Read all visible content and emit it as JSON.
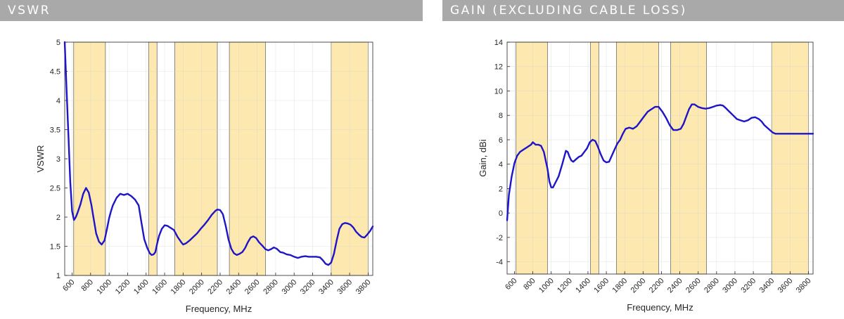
{
  "headers": {
    "left": "VSWR",
    "right": "GAIN (EXCLUDING CABLE LOSS)"
  },
  "colors": {
    "band": "#fde9b0",
    "line": "#1e14c8",
    "grid": "#e6e6e6",
    "header": "#a9a9a9"
  },
  "chart_data": [
    {
      "type": "line",
      "xlabel": "Frequency, MHz",
      "ylabel": "VSWR",
      "xlim": [
        520,
        3850
      ],
      "ylim": [
        1,
        5
      ],
      "grid": true,
      "xticks": [
        600,
        800,
        1000,
        1200,
        1400,
        1600,
        1800,
        2000,
        2200,
        2400,
        2600,
        2800,
        3000,
        3200,
        3400,
        3600,
        3800
      ],
      "yticks": [
        1,
        1.5,
        2,
        2.5,
        3,
        3.5,
        4,
        4.5,
        5
      ],
      "ytick_labels": [
        "1",
        "1.5",
        "2",
        "2.5",
        "3",
        "3.5",
        "4",
        "4.5",
        "5"
      ],
      "bands": [
        [
          617,
          960
        ],
        [
          1427,
          1518
        ],
        [
          1710,
          2170
        ],
        [
          2300,
          2690
        ],
        [
          3400,
          3800
        ]
      ],
      "series": [
        {
          "x": [
            520,
            540,
            560,
            580,
            600,
            620,
            640,
            660,
            690,
            720,
            750,
            780,
            810,
            830,
            860,
            890,
            920,
            950,
            980,
            1000,
            1020,
            1040,
            1080,
            1120,
            1160,
            1200,
            1240,
            1280,
            1320,
            1350,
            1380,
            1410,
            1440,
            1460,
            1480,
            1500,
            1520,
            1540,
            1570,
            1600,
            1630,
            1660,
            1700,
            1740,
            1780,
            1800,
            1830,
            1870,
            1910,
            1950,
            1990,
            2030,
            2070,
            2110,
            2150,
            2170,
            2200,
            2230,
            2260,
            2290,
            2320,
            2350,
            2380,
            2410,
            2440,
            2470,
            2500,
            2530,
            2560,
            2590,
            2620,
            2650,
            2690,
            2720,
            2750,
            2780,
            2810,
            2850,
            2880,
            2920,
            2960,
            3000,
            3040,
            3080,
            3120,
            3160,
            3200,
            3240,
            3280,
            3310,
            3340,
            3370,
            3400,
            3430,
            3460,
            3490,
            3520,
            3550,
            3580,
            3610,
            3640,
            3670,
            3700,
            3730,
            3760,
            3790,
            3820,
            3850
          ],
          "y": [
            5.0,
            4.2,
            3.4,
            2.6,
            2.1,
            1.95,
            2.0,
            2.08,
            2.22,
            2.4,
            2.5,
            2.42,
            2.2,
            2.0,
            1.72,
            1.58,
            1.53,
            1.6,
            1.82,
            1.98,
            2.1,
            2.2,
            2.33,
            2.4,
            2.38,
            2.4,
            2.36,
            2.3,
            2.2,
            1.9,
            1.62,
            1.48,
            1.38,
            1.35,
            1.36,
            1.4,
            1.55,
            1.68,
            1.8,
            1.86,
            1.85,
            1.82,
            1.78,
            1.66,
            1.57,
            1.53,
            1.55,
            1.6,
            1.66,
            1.72,
            1.8,
            1.87,
            1.95,
            2.04,
            2.11,
            2.13,
            2.12,
            2.05,
            1.85,
            1.62,
            1.46,
            1.38,
            1.35,
            1.37,
            1.4,
            1.47,
            1.57,
            1.65,
            1.67,
            1.64,
            1.57,
            1.52,
            1.45,
            1.43,
            1.45,
            1.48,
            1.46,
            1.4,
            1.39,
            1.36,
            1.35,
            1.32,
            1.3,
            1.32,
            1.33,
            1.32,
            1.32,
            1.32,
            1.31,
            1.26,
            1.2,
            1.18,
            1.22,
            1.37,
            1.6,
            1.8,
            1.88,
            1.9,
            1.89,
            1.87,
            1.82,
            1.75,
            1.7,
            1.66,
            1.65,
            1.7,
            1.76,
            1.84
          ]
        }
      ]
    },
    {
      "type": "line",
      "xlabel": "Frequency, MHz",
      "ylabel": "Gain, dBi",
      "xlim": [
        520,
        3850
      ],
      "ylim": [
        -5,
        14
      ],
      "grid": true,
      "xticks": [
        600,
        800,
        1000,
        1200,
        1400,
        1600,
        1800,
        2000,
        2200,
        2400,
        2600,
        2800,
        3000,
        3200,
        3400,
        3600,
        3800
      ],
      "yticks": [
        -4,
        -2,
        0,
        2,
        4,
        6,
        8,
        10,
        12,
        14
      ],
      "ytick_labels": [
        "-4",
        "-2",
        "0",
        "2",
        "4",
        "6",
        "8",
        "10",
        "12",
        "14"
      ],
      "bands": [
        [
          617,
          960
        ],
        [
          1427,
          1518
        ],
        [
          1710,
          2170
        ],
        [
          2300,
          2690
        ],
        [
          3400,
          3800
        ]
      ],
      "series": [
        {
          "x": [
            520,
            540,
            570,
            600,
            630,
            660,
            700,
            740,
            780,
            800,
            830,
            860,
            890,
            920,
            940,
            960,
            980,
            1000,
            1020,
            1040,
            1080,
            1120,
            1160,
            1180,
            1200,
            1220,
            1240,
            1270,
            1300,
            1330,
            1360,
            1390,
            1420,
            1450,
            1480,
            1510,
            1540,
            1570,
            1600,
            1630,
            1660,
            1690,
            1720,
            1750,
            1780,
            1810,
            1850,
            1890,
            1930,
            1970,
            2010,
            2050,
            2090,
            2130,
            2170,
            2210,
            2250,
            2290,
            2330,
            2370,
            2410,
            2440,
            2470,
            2500,
            2530,
            2560,
            2600,
            2640,
            2680,
            2720,
            2760,
            2800,
            2840,
            2870,
            2900,
            2940,
            2980,
            3020,
            3060,
            3100,
            3140,
            3180,
            3220,
            3260,
            3290,
            3320,
            3350,
            3380,
            3410,
            3440,
            3470,
            3500,
            3530,
            3560,
            3590,
            3620,
            3650,
            3680,
            3710,
            3740,
            3770,
            3800,
            3830,
            3850
          ],
          "y": [
            -0.6,
            1.5,
            3.0,
            4.1,
            4.7,
            5.0,
            5.2,
            5.4,
            5.6,
            5.8,
            5.6,
            5.6,
            5.5,
            5.0,
            4.3,
            3.6,
            2.6,
            2.1,
            2.1,
            2.4,
            3.0,
            4.0,
            5.1,
            5.0,
            4.6,
            4.3,
            4.2,
            4.4,
            4.6,
            4.7,
            5.0,
            5.3,
            5.8,
            6.0,
            5.9,
            5.4,
            4.8,
            4.3,
            4.15,
            4.2,
            4.7,
            5.2,
            5.7,
            6.0,
            6.5,
            6.9,
            7.0,
            6.9,
            7.1,
            7.5,
            7.9,
            8.3,
            8.5,
            8.7,
            8.7,
            8.3,
            7.8,
            7.2,
            6.8,
            6.8,
            6.9,
            7.3,
            7.9,
            8.5,
            8.9,
            8.9,
            8.7,
            8.6,
            8.55,
            8.6,
            8.7,
            8.8,
            8.85,
            8.8,
            8.6,
            8.3,
            8.0,
            7.7,
            7.6,
            7.5,
            7.6,
            7.8,
            7.85,
            7.7,
            7.5,
            7.2,
            7.0,
            6.8,
            6.6,
            6.5,
            6.5,
            6.5,
            6.5,
            6.5,
            6.5,
            6.5,
            6.5,
            6.5,
            6.5,
            6.5,
            6.5,
            6.5,
            6.5,
            6.5
          ]
        }
      ]
    }
  ]
}
